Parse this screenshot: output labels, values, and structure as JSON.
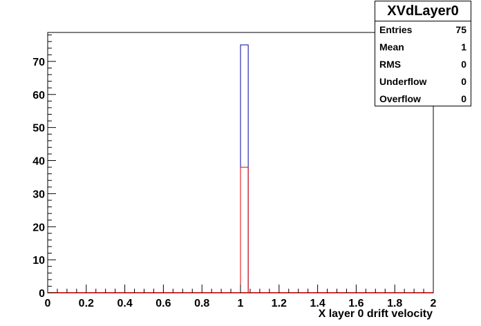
{
  "stats": {
    "title": "XVdLayer0",
    "rows": [
      {
        "label": "Entries",
        "value": "75"
      },
      {
        "label": "Mean",
        "value": "1"
      },
      {
        "label": "RMS",
        "value": "0"
      },
      {
        "label": "Underflow",
        "value": "0"
      },
      {
        "label": "Overflow",
        "value": "0"
      }
    ]
  },
  "chart_data": {
    "type": "bar",
    "title": "",
    "xlabel": "X layer 0 drift velocity",
    "ylabel": "",
    "xlim": [
      0,
      2
    ],
    "ylim": [
      0,
      78.75
    ],
    "x_ticks": [
      "0",
      "0.2",
      "0.4",
      "0.6",
      "0.8",
      "1",
      "1.2",
      "1.4",
      "1.6",
      "1.8",
      "2"
    ],
    "y_ticks": [
      "0",
      "10",
      "20",
      "30",
      "40",
      "50",
      "60",
      "70"
    ],
    "bin_width": 0.04,
    "series": [
      {
        "color": "#0000aa",
        "bins": [
          {
            "x0": 1.0,
            "x1": 1.04,
            "value": 75
          }
        ]
      },
      {
        "color": "#e00000",
        "bins": [
          {
            "x0": 1.0,
            "x1": 1.04,
            "value": 38
          }
        ]
      }
    ]
  }
}
